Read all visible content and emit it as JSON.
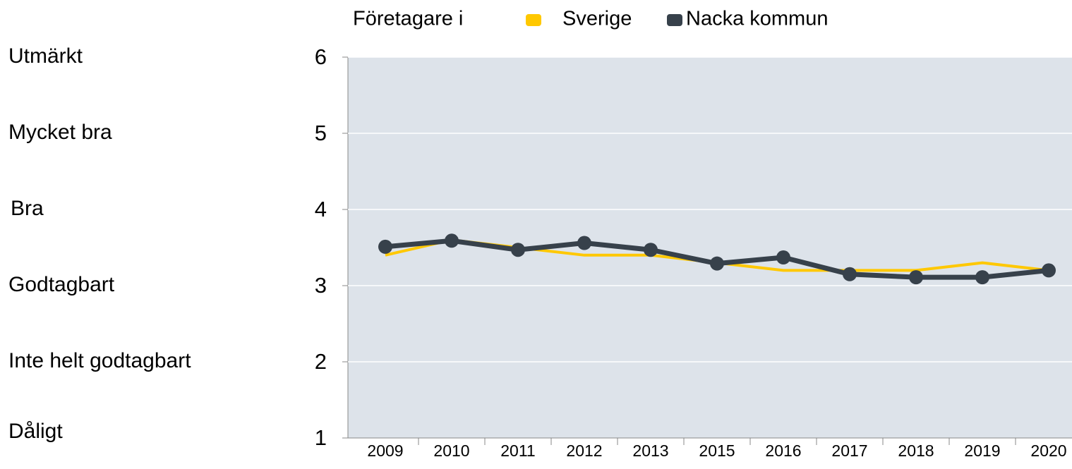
{
  "chart_data": {
    "type": "line",
    "legend_title": "Företagare i",
    "annotations": [
      "Utmärkt",
      "Mycket bra",
      "Bra",
      "Godtagbart",
      "Inte helt godtagbart",
      "Dåligt"
    ],
    "categories": [
      "2009",
      "2010",
      "2011",
      "2012",
      "2013",
      "2015",
      "2016",
      "2017",
      "2018",
      "2019",
      "2020"
    ],
    "series": [
      {
        "name": "Sverige",
        "color": "#ffc800",
        "values": [
          3.4,
          3.6,
          3.5,
          3.4,
          3.4,
          3.3,
          3.2,
          3.2,
          3.2,
          3.3,
          3.2
        ]
      },
      {
        "name": "Nacka kommun",
        "color": "#37414b",
        "values": [
          3.51,
          3.59,
          3.47,
          3.56,
          3.47,
          3.29,
          3.37,
          3.15,
          3.11,
          3.11,
          3.2
        ]
      }
    ],
    "ylim": [
      1,
      6
    ],
    "yticks": [
      1,
      2,
      3,
      4,
      5,
      6
    ],
    "grid": true,
    "plot_background": "#dde3ea"
  }
}
